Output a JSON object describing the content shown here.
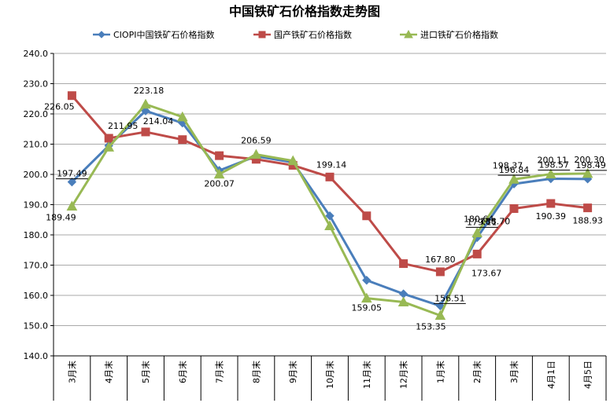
{
  "chart_data": {
    "type": "line",
    "title": "中国铁矿石价格指数走势图",
    "categories": [
      "3月末",
      "4月末",
      "5月末",
      "6月末",
      "7月末",
      "8月末",
      "9月末",
      "10月末",
      "11月末",
      "12月末",
      "1月末",
      "2月末",
      "3月末",
      "4月1日",
      "4月5日"
    ],
    "ylim": [
      140,
      240
    ],
    "yticks": [
      "140.0",
      "150.0",
      "160.0",
      "170.0",
      "180.0",
      "190.0",
      "200.0",
      "210.0",
      "220.0",
      "230.0",
      "240.0"
    ],
    "grid": "horizontal",
    "legend_position": "top",
    "series": [
      {
        "name": "CIOPI中国铁矿石价格指数",
        "color": "#4a7ebb",
        "marker": "diamond",
        "values": [
          197.49,
          209.5,
          221.0,
          217.0,
          201.3,
          206.0,
          204.0,
          186.3,
          165.0,
          160.5,
          156.51,
          179.11,
          196.84,
          198.57,
          198.49
        ],
        "labels": [
          "197.49",
          null,
          null,
          null,
          null,
          null,
          null,
          null,
          null,
          null,
          "156.51",
          "179.11",
          "196.84",
          "198.57",
          "198.49"
        ]
      },
      {
        "name": "国产铁矿石价格指数",
        "color": "#be4b48",
        "marker": "square",
        "values": [
          226.05,
          211.95,
          214.04,
          211.5,
          206.2,
          205.0,
          203.0,
          199.14,
          186.3,
          170.5,
          167.8,
          173.67,
          188.7,
          190.39,
          188.93
        ],
        "labels": [
          "226.05",
          "211.95",
          "214.04",
          null,
          null,
          null,
          null,
          "199.14",
          null,
          null,
          "167.80",
          "173.67",
          "188.70",
          "190.39",
          "188.93"
        ]
      },
      {
        "name": "进口铁矿石价格指数",
        "color": "#98b954",
        "marker": "triangle",
        "values": [
          189.49,
          209.0,
          223.18,
          219.0,
          200.07,
          206.59,
          204.5,
          183.0,
          159.05,
          157.8,
          153.35,
          180.64,
          198.37,
          200.11,
          200.3
        ],
        "labels": [
          "189.49",
          null,
          "223.18",
          null,
          "200.07",
          "206.59",
          null,
          null,
          "159.05",
          null,
          "153.35",
          "180.64",
          "198.37",
          "200.11",
          "200.30"
        ]
      }
    ]
  }
}
